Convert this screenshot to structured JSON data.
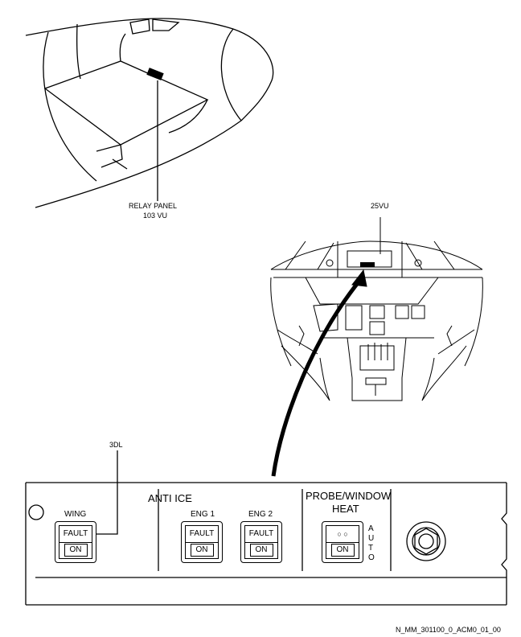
{
  "callouts": {
    "relay_panel_line1": "RELAY PANEL",
    "relay_panel_line2": "103 VU",
    "panel_25vu": "25VU",
    "item_3dl": "3DL"
  },
  "panel": {
    "anti_ice_title": "ANTI ICE",
    "probe_title_line1": "PROBE/WINDOW",
    "probe_title_line2": "HEAT",
    "auto_label": "AUTO",
    "buttons": [
      {
        "label": "WING",
        "top_text": "FAULT",
        "bottom_text": "ON"
      },
      {
        "label": "ENG 1",
        "top_text": "FAULT",
        "bottom_text": "ON"
      },
      {
        "label": "ENG 2",
        "top_text": "FAULT",
        "bottom_text": "ON"
      },
      {
        "label": "",
        "top_text": "○  ○",
        "bottom_text": "ON"
      }
    ]
  },
  "reference_code": "N_MM_301100_0_ACM0_01_00"
}
